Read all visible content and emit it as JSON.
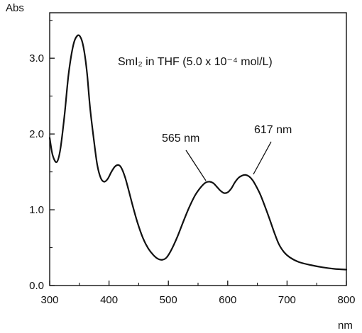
{
  "chart_data": {
    "type": "line",
    "title": "SmI₂ in THF (5.0 x 10⁻⁴ mol/L)",
    "xlabel": "nm",
    "ylabel": "Abs",
    "xlim": [
      300,
      800
    ],
    "ylim": [
      0,
      3.6
    ],
    "x_ticks": [
      300,
      400,
      500,
      600,
      700,
      800
    ],
    "y_ticks": [
      0.0,
      1.0,
      2.0,
      3.0
    ],
    "x_tick_labels": [
      "300",
      "400",
      "500",
      "600",
      "700",
      "800"
    ],
    "y_tick_labels": [
      "0.0",
      "1.0",
      "2.0",
      "3.0"
    ],
    "grid": false,
    "series": [
      {
        "x": [
          300,
          305,
          312,
          318,
          325,
          332,
          340,
          347,
          353,
          358,
          363,
          368,
          374,
          380,
          386,
          392,
          398,
          404,
          410,
          416,
          421,
          427,
          433,
          440,
          448,
          457,
          466,
          475,
          483,
          490,
          497,
          505,
          515,
          525,
          535,
          545,
          555,
          563,
          570,
          576,
          582,
          588,
          594,
          600,
          606,
          612,
          618,
          624,
          630,
          636,
          642,
          648,
          655,
          662,
          670,
          678,
          686,
          695,
          705,
          720,
          740,
          760,
          780,
          800
        ],
        "y": [
          1.95,
          1.72,
          1.63,
          1.8,
          2.25,
          2.8,
          3.18,
          3.3,
          3.26,
          3.1,
          2.8,
          2.35,
          1.95,
          1.6,
          1.42,
          1.37,
          1.41,
          1.5,
          1.57,
          1.59,
          1.55,
          1.43,
          1.26,
          1.05,
          0.83,
          0.63,
          0.49,
          0.4,
          0.35,
          0.34,
          0.37,
          0.47,
          0.64,
          0.84,
          1.03,
          1.19,
          1.3,
          1.36,
          1.37,
          1.35,
          1.3,
          1.25,
          1.22,
          1.23,
          1.28,
          1.36,
          1.42,
          1.45,
          1.46,
          1.44,
          1.39,
          1.31,
          1.2,
          1.06,
          0.89,
          0.71,
          0.55,
          0.44,
          0.37,
          0.31,
          0.27,
          0.24,
          0.22,
          0.21
        ]
      }
    ],
    "annotations": [
      {
        "text": "565 nm",
        "x": 565,
        "y": 1.37
      },
      {
        "text": "617 nm",
        "x": 617,
        "y": 1.46
      }
    ]
  }
}
